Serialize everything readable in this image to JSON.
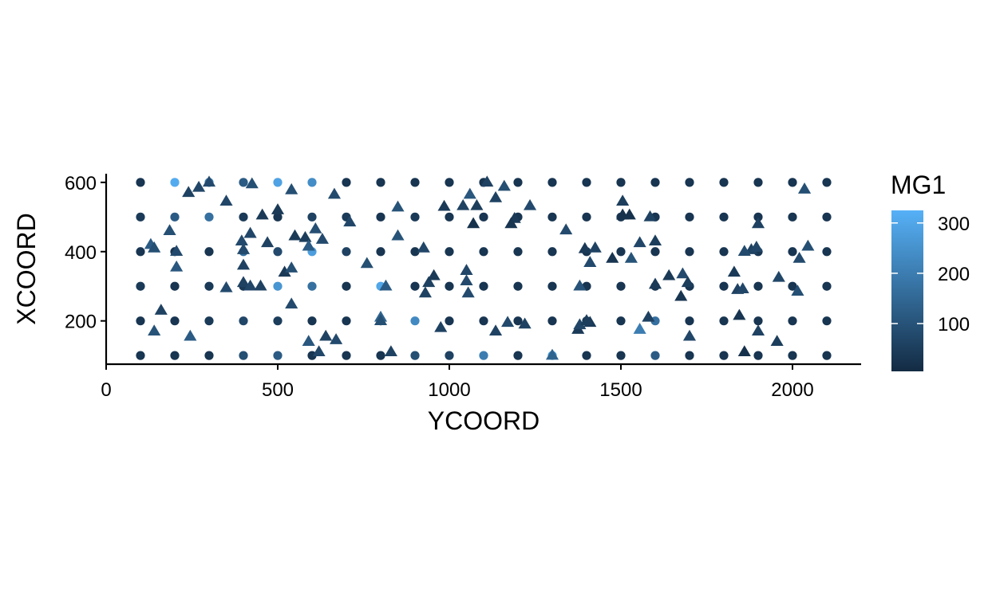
{
  "chart_data": {
    "type": "scatter",
    "title": "",
    "xlabel": "YCOORD",
    "ylabel": "XCOORD",
    "xlim": [
      0,
      2200
    ],
    "ylim": [
      75,
      625
    ],
    "x_ticks": [
      {
        "value": 0,
        "label": "0"
      },
      {
        "value": 500,
        "label": "500"
      },
      {
        "value": 1000,
        "label": "1000"
      },
      {
        "value": 1500,
        "label": "1500"
      },
      {
        "value": 2000,
        "label": "2000"
      }
    ],
    "y_ticks": [
      {
        "value": 200,
        "label": "200"
      },
      {
        "value": 400,
        "label": "400"
      },
      {
        "value": 600,
        "label": "600"
      }
    ],
    "grid": false,
    "legend": {
      "title": "MG1",
      "placement": "right",
      "type": "colorbar",
      "range": [
        5,
        325
      ],
      "ticks": [
        {
          "value": 100,
          "label": "100"
        },
        {
          "value": 200,
          "label": "200"
        },
        {
          "value": 300,
          "label": "300"
        }
      ],
      "color_low": "#132B43",
      "color_high": "#56B1F7"
    },
    "series": [
      {
        "shape": "circle",
        "points": [
          [
            100,
            600,
            30
          ],
          [
            200,
            600,
            310
          ],
          [
            300,
            600,
            200
          ],
          [
            400,
            600,
            120
          ],
          [
            500,
            600,
            290
          ],
          [
            600,
            600,
            240
          ],
          [
            700,
            600,
            30
          ],
          [
            800,
            600,
            30
          ],
          [
            900,
            600,
            30
          ],
          [
            1000,
            600,
            30
          ],
          [
            1100,
            600,
            30
          ],
          [
            1200,
            600,
            30
          ],
          [
            1300,
            600,
            30
          ],
          [
            1400,
            600,
            30
          ],
          [
            1500,
            600,
            30
          ],
          [
            1600,
            600,
            30
          ],
          [
            1700,
            600,
            30
          ],
          [
            1800,
            600,
            30
          ],
          [
            1900,
            600,
            30
          ],
          [
            2000,
            600,
            30
          ],
          [
            2100,
            600,
            30
          ],
          [
            100,
            500,
            40
          ],
          [
            200,
            500,
            120
          ],
          [
            300,
            500,
            170
          ],
          [
            400,
            500,
            40
          ],
          [
            500,
            500,
            30
          ],
          [
            600,
            500,
            60
          ],
          [
            700,
            500,
            40
          ],
          [
            800,
            500,
            30
          ],
          [
            900,
            500,
            40
          ],
          [
            1000,
            500,
            30
          ],
          [
            1100,
            500,
            30
          ],
          [
            1200,
            500,
            30
          ],
          [
            1300,
            500,
            30
          ],
          [
            1400,
            500,
            30
          ],
          [
            1500,
            500,
            30
          ],
          [
            1600,
            500,
            30
          ],
          [
            1700,
            500,
            30
          ],
          [
            1800,
            500,
            30
          ],
          [
            1900,
            500,
            30
          ],
          [
            2000,
            500,
            30
          ],
          [
            2100,
            500,
            30
          ],
          [
            100,
            400,
            30
          ],
          [
            200,
            400,
            30
          ],
          [
            300,
            400,
            30
          ],
          [
            400,
            400,
            160
          ],
          [
            500,
            400,
            80
          ],
          [
            600,
            400,
            280
          ],
          [
            700,
            400,
            60
          ],
          [
            800,
            400,
            30
          ],
          [
            900,
            400,
            30
          ],
          [
            1000,
            400,
            30
          ],
          [
            1100,
            400,
            30
          ],
          [
            1200,
            400,
            30
          ],
          [
            1300,
            400,
            30
          ],
          [
            1400,
            400,
            30
          ],
          [
            1500,
            400,
            30
          ],
          [
            1600,
            400,
            30
          ],
          [
            1700,
            400,
            30
          ],
          [
            1800,
            400,
            30
          ],
          [
            1900,
            400,
            30
          ],
          [
            2000,
            400,
            30
          ],
          [
            2100,
            400,
            30
          ],
          [
            100,
            300,
            40
          ],
          [
            200,
            300,
            30
          ],
          [
            300,
            300,
            40
          ],
          [
            400,
            300,
            40
          ],
          [
            500,
            300,
            260
          ],
          [
            600,
            300,
            170
          ],
          [
            700,
            300,
            30
          ],
          [
            800,
            300,
            300
          ],
          [
            900,
            300,
            30
          ],
          [
            1000,
            300,
            30
          ],
          [
            1100,
            300,
            30
          ],
          [
            1200,
            300,
            30
          ],
          [
            1300,
            300,
            30
          ],
          [
            1400,
            300,
            30
          ],
          [
            1500,
            300,
            30
          ],
          [
            1600,
            300,
            30
          ],
          [
            1700,
            300,
            30
          ],
          [
            1800,
            300,
            30
          ],
          [
            1900,
            300,
            30
          ],
          [
            2000,
            300,
            30
          ],
          [
            2100,
            300,
            30
          ],
          [
            100,
            200,
            30
          ],
          [
            200,
            200,
            30
          ],
          [
            300,
            200,
            40
          ],
          [
            400,
            200,
            70
          ],
          [
            500,
            200,
            50
          ],
          [
            600,
            200,
            30
          ],
          [
            700,
            200,
            30
          ],
          [
            800,
            200,
            30
          ],
          [
            900,
            200,
            230
          ],
          [
            1000,
            200,
            30
          ],
          [
            1100,
            200,
            30
          ],
          [
            1200,
            200,
            30
          ],
          [
            1300,
            200,
            30
          ],
          [
            1400,
            200,
            30
          ],
          [
            1500,
            200,
            30
          ],
          [
            1600,
            200,
            170
          ],
          [
            1700,
            200,
            30
          ],
          [
            1800,
            200,
            30
          ],
          [
            1900,
            200,
            30
          ],
          [
            2000,
            200,
            30
          ],
          [
            2100,
            200,
            30
          ],
          [
            100,
            100,
            30
          ],
          [
            200,
            100,
            30
          ],
          [
            300,
            100,
            30
          ],
          [
            400,
            100,
            90
          ],
          [
            500,
            100,
            120
          ],
          [
            600,
            100,
            30
          ],
          [
            700,
            100,
            30
          ],
          [
            800,
            100,
            30
          ],
          [
            900,
            100,
            90
          ],
          [
            1000,
            100,
            60
          ],
          [
            1100,
            100,
            200
          ],
          [
            1200,
            100,
            30
          ],
          [
            1300,
            100,
            270
          ],
          [
            1400,
            100,
            30
          ],
          [
            1500,
            100,
            30
          ],
          [
            1600,
            100,
            120
          ],
          [
            1700,
            100,
            30
          ],
          [
            1800,
            100,
            30
          ],
          [
            1900,
            100,
            30
          ],
          [
            2000,
            100,
            30
          ],
          [
            2100,
            100,
            30
          ]
        ]
      },
      {
        "shape": "triangle",
        "points": [
          [
            240,
            570,
            60
          ],
          [
            270,
            585,
            70
          ],
          [
            300,
            600,
            80
          ],
          [
            425,
            595,
            90
          ],
          [
            540,
            578,
            90
          ],
          [
            665,
            565,
            80
          ],
          [
            1060,
            565,
            110
          ],
          [
            1110,
            600,
            60
          ],
          [
            1160,
            588,
            90
          ],
          [
            1040,
            532,
            60
          ],
          [
            1080,
            532,
            50
          ],
          [
            1505,
            545,
            50
          ],
          [
            1505,
            505,
            20
          ],
          [
            1525,
            505,
            20
          ],
          [
            1585,
            500,
            60
          ],
          [
            2035,
            580,
            90
          ],
          [
            985,
            530,
            40
          ],
          [
            1135,
            555,
            60
          ],
          [
            1235,
            532,
            80
          ],
          [
            1070,
            480,
            20
          ],
          [
            1190,
            495,
            40
          ],
          [
            1180,
            480,
            30
          ],
          [
            1900,
            480,
            60
          ],
          [
            1340,
            462,
            80
          ],
          [
            1395,
            408,
            40
          ],
          [
            1425,
            410,
            60
          ],
          [
            1880,
            405,
            60
          ],
          [
            1895,
            412,
            70
          ],
          [
            1555,
            425,
            70
          ],
          [
            1600,
            430,
            50
          ],
          [
            1860,
            400,
            80
          ],
          [
            185,
            460,
            90
          ],
          [
            455,
            505,
            40
          ],
          [
            500,
            520,
            40
          ],
          [
            420,
            452,
            70
          ],
          [
            395,
            430,
            80
          ],
          [
            470,
            425,
            60
          ],
          [
            550,
            445,
            40
          ],
          [
            580,
            440,
            50
          ],
          [
            610,
            465,
            90
          ],
          [
            630,
            435,
            80
          ],
          [
            130,
            420,
            120
          ],
          [
            140,
            410,
            90
          ],
          [
            205,
            400,
            80
          ],
          [
            400,
            405,
            80
          ],
          [
            590,
            415,
            120
          ],
          [
            710,
            485,
            70
          ],
          [
            850,
            528,
            100
          ],
          [
            850,
            445,
            100
          ],
          [
            925,
            410,
            70
          ],
          [
            760,
            365,
            90
          ],
          [
            350,
            545,
            70
          ],
          [
            1640,
            330,
            40
          ],
          [
            1475,
            380,
            30
          ],
          [
            1530,
            380,
            100
          ],
          [
            1410,
            368,
            80
          ],
          [
            400,
            360,
            60
          ],
          [
            400,
            310,
            60
          ],
          [
            420,
            300,
            70
          ],
          [
            450,
            300,
            60
          ],
          [
            520,
            340,
            40
          ],
          [
            540,
            352,
            90
          ],
          [
            350,
            295,
            80
          ],
          [
            205,
            355,
            110
          ],
          [
            1050,
            345,
            70
          ],
          [
            1050,
            315,
            80
          ],
          [
            1055,
            280,
            80
          ],
          [
            940,
            310,
            60
          ],
          [
            955,
            330,
            40
          ],
          [
            930,
            280,
            60
          ],
          [
            815,
            300,
            120
          ],
          [
            1380,
            300,
            100
          ],
          [
            1600,
            305,
            40
          ],
          [
            1680,
            335,
            80
          ],
          [
            1695,
            310,
            50
          ],
          [
            1675,
            270,
            30
          ],
          [
            1830,
            340,
            40
          ],
          [
            1840,
            290,
            60
          ],
          [
            1855,
            292,
            70
          ],
          [
            1960,
            325,
            70
          ],
          [
            2020,
            380,
            80
          ],
          [
            2045,
            415,
            90
          ],
          [
            2015,
            285,
            90
          ],
          [
            160,
            230,
            60
          ],
          [
            140,
            170,
            100
          ],
          [
            245,
            155,
            120
          ],
          [
            540,
            248,
            80
          ],
          [
            800,
            210,
            140
          ],
          [
            800,
            200,
            90
          ],
          [
            975,
            180,
            60
          ],
          [
            1135,
            170,
            60
          ],
          [
            1170,
            195,
            80
          ],
          [
            1220,
            190,
            60
          ],
          [
            1375,
            175,
            40
          ],
          [
            1380,
            188,
            70
          ],
          [
            1410,
            195,
            40
          ],
          [
            1400,
            200,
            50
          ],
          [
            1555,
            175,
            200
          ],
          [
            1580,
            210,
            60
          ],
          [
            1700,
            155,
            70
          ],
          [
            1845,
            215,
            30
          ],
          [
            1900,
            170,
            60
          ],
          [
            1955,
            140,
            50
          ],
          [
            1860,
            110,
            20
          ],
          [
            590,
            140,
            110
          ],
          [
            620,
            110,
            70
          ],
          [
            640,
            155,
            60
          ],
          [
            670,
            145,
            80
          ],
          [
            830,
            110,
            60
          ],
          [
            1300,
            100,
            140
          ]
        ]
      }
    ]
  }
}
